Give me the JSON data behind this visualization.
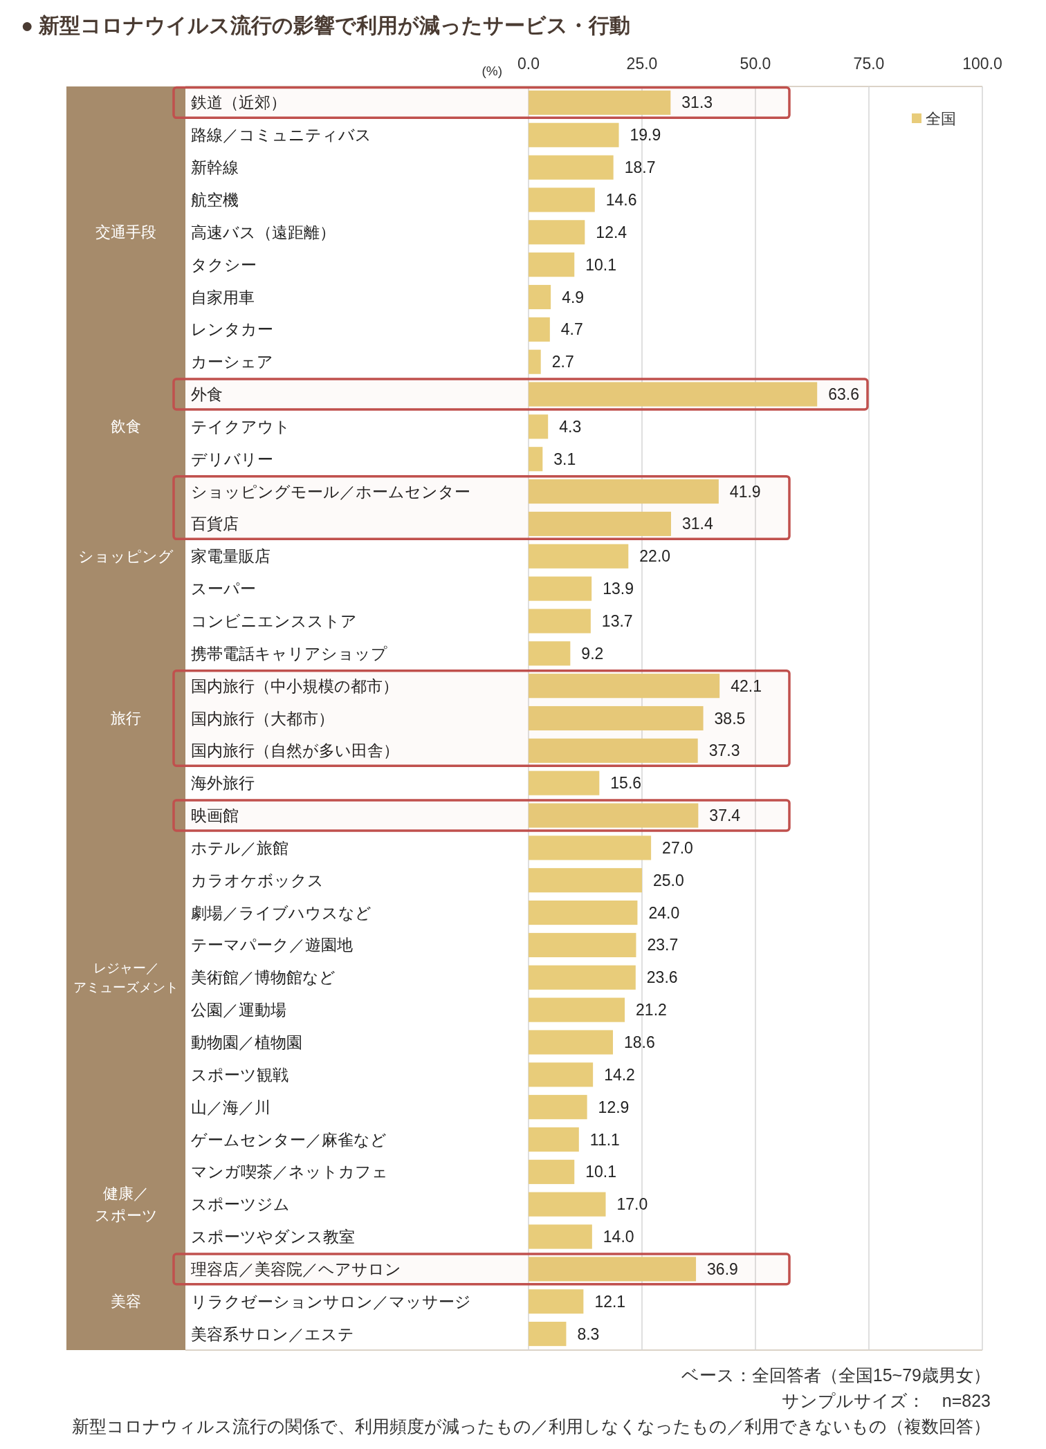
{
  "chart_data": {
    "type": "bar",
    "orientation": "horizontal",
    "title": "● 新型コロナウイルス流行の影響で利用が減ったサービス・行動",
    "xlabel": "(%)",
    "categories": [
      "鉄道（近郊）",
      "路線／コミュニティバス",
      "新幹線",
      "航空機",
      "高速バス（遠距離）",
      "タクシー",
      "自家用車",
      "レンタカー",
      "カーシェア",
      "外食",
      "テイクアウト",
      "デリバリー",
      "ショッピングモール／ホームセンター",
      "百貨店",
      "家電量販店",
      "スーパー",
      "コンビニエンスストア",
      "携帯電話キャリアショップ",
      "国内旅行（中小規模の都市）",
      "国内旅行（大都市）",
      "国内旅行（自然が多い田舎）",
      "海外旅行",
      "映画館",
      "ホテル／旅館",
      "カラオケボックス",
      "劇場／ライブハウスなど",
      "テーマパーク／遊園地",
      "美術館／博物館など",
      "公園／運動場",
      "動物園／植物園",
      "スポーツ観戦",
      "山／海／川",
      "ゲームセンター／麻雀など",
      "マンガ喫茶／ネットカフェ",
      "スポーツジム",
      "スポーツやダンス教室",
      "理容店／美容院／ヘアサロン",
      "リラクゼーションサロン／マッサージ",
      "美容系サロン／エステ"
    ],
    "y2_categories": [
      null,
      null,
      null,
      null,
      "交通手段",
      null,
      null,
      null,
      null,
      null,
      "飲食",
      null,
      null,
      null,
      "ショッピング",
      null,
      null,
      null,
      null,
      "旅行",
      null,
      null,
      null,
      null,
      null,
      null,
      null,
      "レジャー／アミューズメント",
      null,
      null,
      null,
      null,
      null,
      null,
      "健康／スポーツ",
      null,
      null,
      "美容",
      null
    ],
    "series": [
      {
        "name": "全国",
        "color": "#e8cc7a",
        "values": [
          31.3,
          19.9,
          18.7,
          14.6,
          12.4,
          10.1,
          4.9,
          4.7,
          2.7,
          63.6,
          4.3,
          3.1,
          41.9,
          31.4,
          22.0,
          13.9,
          13.7,
          9.2,
          42.1,
          38.5,
          37.3,
          15.6,
          37.4,
          27.0,
          25.0,
          24.0,
          23.7,
          23.6,
          21.2,
          18.6,
          14.2,
          12.9,
          11.1,
          10.1,
          17.0,
          14.0,
          36.9,
          12.1,
          8.3
        ],
        "value_labels": [
          "31.3",
          "19.9",
          "18.7",
          "14.6",
          "12.4",
          "10.1",
          "4.9",
          "4.7",
          "2.7",
          "63.6",
          "4.3",
          "3.1",
          "41.9",
          "31.4",
          "22.0",
          "13.9",
          "13.7",
          "9.2",
          "42.1",
          "38.5",
          "37.3",
          "15.6",
          "37.4",
          "27.0",
          "25.0",
          "24.0",
          "23.7",
          "23.6",
          "21.2",
          "18.6",
          "14.2",
          "12.9",
          "11.1",
          "10.1",
          "17.0",
          "14.0",
          "36.9",
          "12.1",
          "8.3"
        ]
      }
    ],
    "xlim": [
      0,
      100
    ],
    "xticks": [
      {
        "value": 0,
        "label": "0.0"
      },
      {
        "value": 25,
        "label": "25.0"
      },
      {
        "value": 50,
        "label": "50.0"
      },
      {
        "value": 75,
        "label": "75.0"
      },
      {
        "value": 100,
        "label": "100.0"
      }
    ],
    "grid": "x",
    "legend": "top right",
    "bands": [
      {
        "axis": "y",
        "from": "鉄道（近郊）",
        "to": "鉄道（近郊）",
        "color": "#c0504d"
      },
      {
        "axis": "y",
        "from": "外食",
        "to": "外食",
        "color": "#c0504d"
      },
      {
        "axis": "y",
        "from": "ショッピングモール／ホームセンター",
        "to": "百貨店",
        "color": "#c0504d"
      },
      {
        "axis": "y",
        "from": "国内旅行（中小規模の都市）",
        "to": "国内旅行（自然が多い田舎）",
        "color": "#c0504d"
      },
      {
        "axis": "y",
        "from": "映画館",
        "to": "映画館",
        "color": "#c0504d"
      },
      {
        "axis": "y",
        "from": "理容店／美容院／ヘアサロン",
        "to": "理容店／美容院／ヘアサロン",
        "color": "#c0504d"
      }
    ],
    "annotations": [
      "ベース：全回答者（全国15~79歳男女）",
      "サンプルサイズ：　n=823",
      "新型コロナウィルス流行の関係で、利用頻度が減ったもの／利用しなくなったもの／利用できないもの（複数回答）"
    ]
  }
}
